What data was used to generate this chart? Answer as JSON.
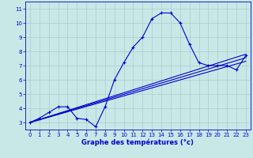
{
  "xlabel": "Graphe des températures (°c)",
  "hours": [
    0,
    1,
    2,
    3,
    4,
    5,
    6,
    7,
    8,
    9,
    10,
    11,
    12,
    13,
    14,
    15,
    16,
    17,
    18,
    19,
    20,
    21,
    22,
    23
  ],
  "temps": [
    3.0,
    3.3,
    3.7,
    4.1,
    4.1,
    3.3,
    3.2,
    2.7,
    4.1,
    6.0,
    7.2,
    8.3,
    9.0,
    10.3,
    10.7,
    10.7,
    10.0,
    8.5,
    7.2,
    7.0,
    7.0,
    7.0,
    6.7,
    7.7
  ],
  "line_color": "#0000cc",
  "bg_color": "#c8e8e8",
  "grid_color": "#aacccc",
  "yticks": [
    3,
    4,
    5,
    6,
    7,
    8,
    9,
    10,
    11
  ],
  "xticks": [
    0,
    1,
    2,
    3,
    4,
    5,
    6,
    7,
    8,
    9,
    10,
    11,
    12,
    13,
    14,
    15,
    16,
    17,
    18,
    19,
    20,
    21,
    22,
    23
  ],
  "ylim": [
    2.5,
    11.5
  ],
  "xlim": [
    -0.5,
    23.5
  ],
  "trend_lines": [
    {
      "x0": 0,
      "y0": 3.0,
      "x1": 23,
      "y1": 7.3
    },
    {
      "x0": 0,
      "y0": 3.0,
      "x1": 23,
      "y1": 7.55
    },
    {
      "x0": 0,
      "y0": 3.0,
      "x1": 23,
      "y1": 7.8
    }
  ]
}
